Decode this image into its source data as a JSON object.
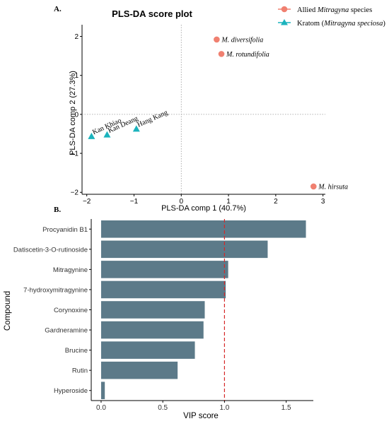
{
  "chart_data": [
    {
      "panel_label": "A.",
      "type": "scatter",
      "title": "PLS-DA score plot",
      "xlabel": "PLS-DA comp 1 (40.7%)",
      "ylabel": "PLS-DA comp 2 (27.3%)",
      "xlim": [
        -2.1,
        3.05
      ],
      "ylim": [
        -2.05,
        2.3
      ],
      "x_ticks": [
        -2,
        -1,
        0,
        1,
        2,
        3
      ],
      "y_ticks": [
        -2,
        -1,
        0,
        1,
        2
      ],
      "x_tick_labels": [
        "−2",
        "−1",
        "0",
        "1",
        "2",
        "3"
      ],
      "y_tick_labels": [
        "−2",
        "−1",
        "0",
        "1",
        "2"
      ],
      "reference_lines": {
        "x": 0,
        "y": 0,
        "style": "dotted"
      },
      "legend_position": "top-right",
      "series": [
        {
          "name_parts": [
            {
              "text": "Allied ",
              "italic": false
            },
            {
              "text": "Mitragyna",
              "italic": true
            },
            {
              "text": " species",
              "italic": false
            }
          ],
          "marker": "circle",
          "color": "#f08070",
          "points": [
            {
              "x": 0.75,
              "y": 1.92,
              "label": "M. diversifolia"
            },
            {
              "x": 0.85,
              "y": 1.55,
              "label": "M. rotundifolia"
            },
            {
              "x": 2.8,
              "y": -1.85,
              "label": "M. hirsuta"
            }
          ]
        },
        {
          "name_parts": [
            {
              "text": "Kratom (",
              "italic": false
            },
            {
              "text": "Mitragyna speciosa",
              "italic": true
            },
            {
              "text": ")",
              "italic": false
            }
          ],
          "marker": "triangle",
          "color": "#1bb3bd",
          "points": [
            {
              "x": -1.9,
              "y": -0.57,
              "label": "Kan Khiao"
            },
            {
              "x": -1.57,
              "y": -0.53,
              "label": "Kan Deang"
            },
            {
              "x": -0.95,
              "y": -0.38,
              "label": "Hang Kang"
            }
          ]
        }
      ]
    },
    {
      "panel_label": "B.",
      "type": "bar",
      "orientation": "horizontal",
      "xlabel": "VIP score",
      "ylabel": "Compound",
      "xlim": [
        -0.08,
        1.72
      ],
      "x_ticks": [
        0.0,
        0.5,
        1.0,
        1.5
      ],
      "x_tick_labels": [
        "0.0",
        "0.5",
        "1.0",
        "1.5"
      ],
      "bar_color": "#5c7a89",
      "threshold_line": {
        "x": 1.0,
        "color": "#d62828",
        "style": "dashed"
      },
      "categories": [
        "Procyanidin B1",
        "Datiscetin-3-O-rutinoside",
        "Mitragynine",
        "7-hydroxymitragynine",
        "Corynoxine",
        "Gardneramine",
        "Brucine",
        "Rutin",
        "Hyperoside"
      ],
      "values": [
        1.66,
        1.35,
        1.03,
        1.01,
        0.84,
        0.83,
        0.76,
        0.62,
        0.03
      ]
    }
  ]
}
